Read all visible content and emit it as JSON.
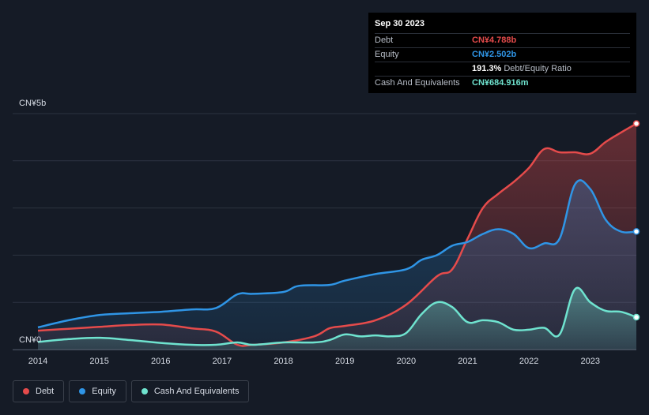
{
  "tooltip": {
    "date": "Sep 30 2023",
    "rows": [
      {
        "label": "Debt",
        "value": "CN¥4.788b",
        "color": "#e54b4b"
      },
      {
        "label": "Equity",
        "value": "CN¥2.502b",
        "color": "#2f95e6"
      },
      {
        "label": "",
        "value": "191.3%",
        "suffix": "Debt/Equity Ratio",
        "color": "#ffffff"
      },
      {
        "label": "Cash And Equivalents",
        "value": "CN¥684.916m",
        "color": "#6fe3cf"
      }
    ]
  },
  "legend": [
    {
      "label": "Debt",
      "color": "#e54b4b"
    },
    {
      "label": "Equity",
      "color": "#2f95e6"
    },
    {
      "label": "Cash And Equivalents",
      "color": "#6fe3cf"
    }
  ],
  "chart_data": {
    "type": "area",
    "y_unit": "CN¥ billions",
    "ylim": [
      0,
      5
    ],
    "y_tick_labels": [
      {
        "value": 5,
        "label": "CN¥5b"
      },
      {
        "value": 0,
        "label": "CN¥0"
      }
    ],
    "xlim": [
      2014,
      2023.75
    ],
    "x_ticks": [
      "2014",
      "2015",
      "2016",
      "2017",
      "2018",
      "2019",
      "2020",
      "2021",
      "2022",
      "2023"
    ],
    "grid": true,
    "legend_position": "bottom-left",
    "series": [
      {
        "name": "Debt",
        "color": "#e54b4b",
        "points": [
          [
            2014,
            0.4
          ],
          [
            2014.5,
            0.44
          ],
          [
            2015,
            0.48
          ],
          [
            2015.5,
            0.52
          ],
          [
            2016,
            0.53
          ],
          [
            2016.5,
            0.45
          ],
          [
            2016.9,
            0.38
          ],
          [
            2017.25,
            0.1
          ],
          [
            2017.5,
            0.1
          ],
          [
            2018,
            0.15
          ],
          [
            2018.5,
            0.28
          ],
          [
            2018.75,
            0.45
          ],
          [
            2019,
            0.5
          ],
          [
            2019.5,
            0.62
          ],
          [
            2020,
            0.95
          ],
          [
            2020.5,
            1.55
          ],
          [
            2020.75,
            1.7
          ],
          [
            2021,
            2.35
          ],
          [
            2021.25,
            3.0
          ],
          [
            2021.5,
            3.3
          ],
          [
            2021.75,
            3.55
          ],
          [
            2022,
            3.85
          ],
          [
            2022.25,
            4.25
          ],
          [
            2022.5,
            4.18
          ],
          [
            2022.75,
            4.18
          ],
          [
            2023,
            4.15
          ],
          [
            2023.25,
            4.4
          ],
          [
            2023.5,
            4.6
          ],
          [
            2023.75,
            4.788
          ]
        ]
      },
      {
        "name": "Equity",
        "color": "#2f95e6",
        "points": [
          [
            2014,
            0.47
          ],
          [
            2014.5,
            0.62
          ],
          [
            2015,
            0.73
          ],
          [
            2015.5,
            0.77
          ],
          [
            2016,
            0.8
          ],
          [
            2016.5,
            0.85
          ],
          [
            2016.9,
            0.88
          ],
          [
            2017.25,
            1.17
          ],
          [
            2017.5,
            1.18
          ],
          [
            2018,
            1.22
          ],
          [
            2018.25,
            1.35
          ],
          [
            2018.75,
            1.37
          ],
          [
            2019,
            1.46
          ],
          [
            2019.5,
            1.6
          ],
          [
            2020,
            1.7
          ],
          [
            2020.25,
            1.9
          ],
          [
            2020.5,
            2.0
          ],
          [
            2020.75,
            2.2
          ],
          [
            2021,
            2.28
          ],
          [
            2021.25,
            2.45
          ],
          [
            2021.5,
            2.55
          ],
          [
            2021.75,
            2.45
          ],
          [
            2022,
            2.15
          ],
          [
            2022.25,
            2.25
          ],
          [
            2022.5,
            2.35
          ],
          [
            2022.75,
            3.5
          ],
          [
            2023,
            3.4
          ],
          [
            2023.25,
            2.75
          ],
          [
            2023.5,
            2.5
          ],
          [
            2023.75,
            2.502
          ]
        ]
      },
      {
        "name": "Cash And Equivalents",
        "color": "#6fe3cf",
        "points": [
          [
            2014,
            0.16
          ],
          [
            2014.5,
            0.22
          ],
          [
            2015,
            0.25
          ],
          [
            2015.5,
            0.2
          ],
          [
            2016,
            0.14
          ],
          [
            2016.5,
            0.1
          ],
          [
            2016.9,
            0.1
          ],
          [
            2017.25,
            0.15
          ],
          [
            2017.5,
            0.1
          ],
          [
            2018,
            0.15
          ],
          [
            2018.5,
            0.15
          ],
          [
            2018.75,
            0.2
          ],
          [
            2019,
            0.32
          ],
          [
            2019.25,
            0.28
          ],
          [
            2019.5,
            0.3
          ],
          [
            2019.75,
            0.28
          ],
          [
            2020,
            0.35
          ],
          [
            2020.25,
            0.75
          ],
          [
            2020.5,
            1.0
          ],
          [
            2020.75,
            0.9
          ],
          [
            2021,
            0.58
          ],
          [
            2021.25,
            0.62
          ],
          [
            2021.5,
            0.58
          ],
          [
            2021.75,
            0.42
          ],
          [
            2022,
            0.42
          ],
          [
            2022.25,
            0.46
          ],
          [
            2022.5,
            0.32
          ],
          [
            2022.75,
            1.28
          ],
          [
            2023,
            1.0
          ],
          [
            2023.25,
            0.82
          ],
          [
            2023.5,
            0.8
          ],
          [
            2023.75,
            0.685
          ]
        ]
      }
    ]
  }
}
